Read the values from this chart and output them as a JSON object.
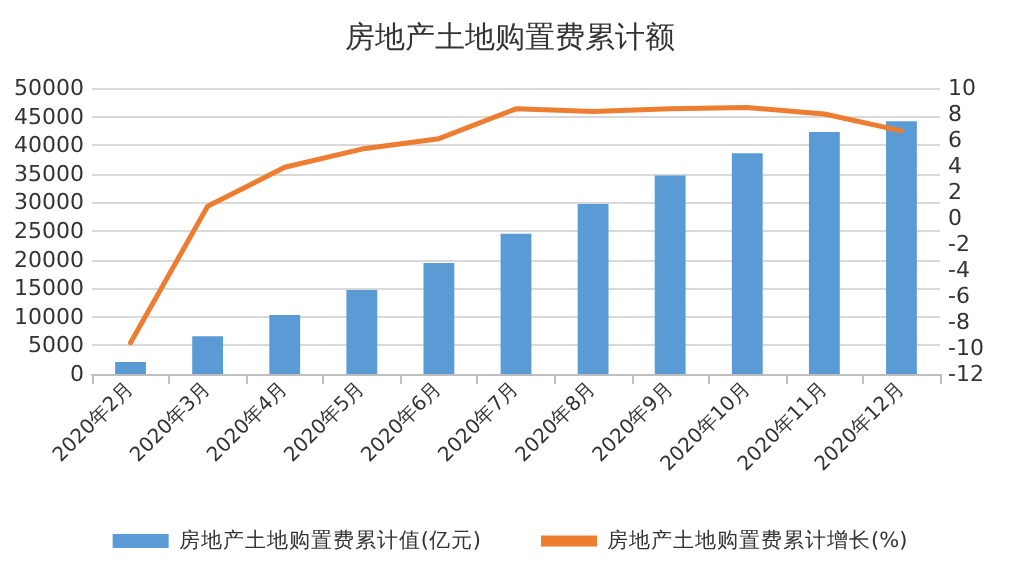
{
  "chart_data": {
    "type": "bar",
    "title": "房地产土地购置费累计额",
    "categories": [
      "2020年2月",
      "2020年3月",
      "2020年4月",
      "2020年5月",
      "2020年6月",
      "2020年7月",
      "2020年8月",
      "2020年9月",
      "2020年10月",
      "2020年11月",
      "2020年12月"
    ],
    "series": [
      {
        "name": "房地产土地购置费累计值(亿元)",
        "color": "#5b9bd5",
        "values": [
          2100,
          6600,
          10300,
          14700,
          19400,
          24500,
          29700,
          34700,
          38600,
          42300,
          44200
        ]
      },
      {
        "name": "房地产土地购置费累计增长(%)",
        "type": "line",
        "axis": "y2",
        "color": "#ed7d31",
        "values": [
          -9.6,
          0.9,
          3.9,
          5.3,
          6.1,
          8.4,
          8.2,
          8.4,
          8.5,
          8.0,
          6.7
        ]
      }
    ],
    "ylim": [
      0,
      50000
    ],
    "yticks": [
      0,
      5000,
      10000,
      15000,
      20000,
      25000,
      30000,
      35000,
      40000,
      45000,
      50000
    ],
    "y2lim": [
      -12,
      10
    ],
    "y2ticks": [
      -12,
      -10,
      -8,
      -6,
      -4,
      -2,
      0,
      2,
      4,
      6,
      8,
      10
    ],
    "grid": "y",
    "legend": "bottom",
    "marker": "none",
    "line_style": "solid"
  }
}
